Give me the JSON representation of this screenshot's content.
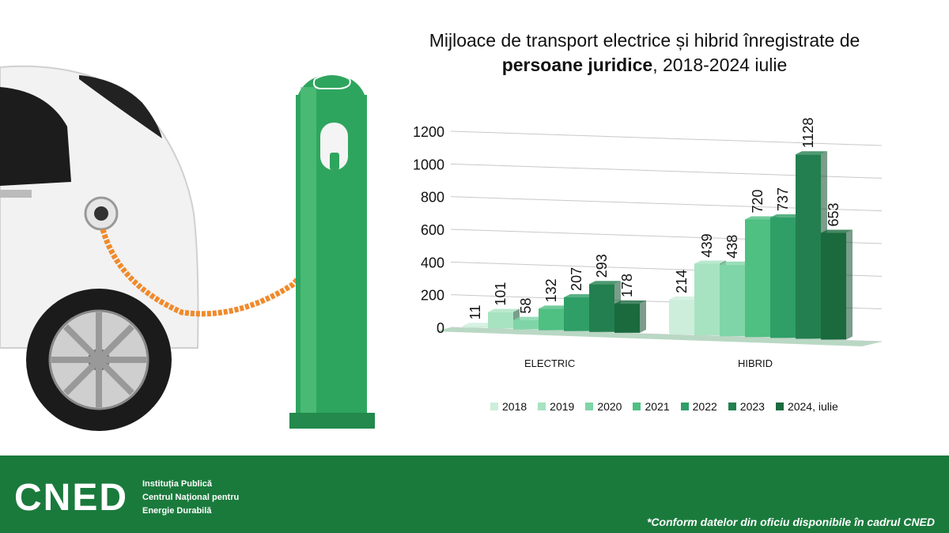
{
  "title_line1": "Mijloace de transport electrice și hibrid înregistrate de",
  "title_bold": "persoane juridice",
  "title_rest": ", 2018-2024 iulie",
  "footer": {
    "logo": "CNED",
    "org_line1": "Instituția Publică",
    "org_line2": "Centrul Național pentru",
    "org_line3": "Energie Durabilă",
    "note": "*Conform datelor din oficiu disponibile în cadrul CNED"
  },
  "colors": {
    "footer": "#1a7a3c",
    "series": [
      "#cdeedb",
      "#a8e3c1",
      "#7fd5a7",
      "#4fbf82",
      "#2f9e67",
      "#237f4f",
      "#1a6a3e"
    ]
  },
  "chart_data": {
    "type": "bar",
    "categories": [
      "ELECTRIC",
      "HIBRID"
    ],
    "ylim": [
      0,
      1200
    ],
    "yticks": [
      0,
      200,
      400,
      600,
      800,
      1000,
      1200
    ],
    "series": [
      {
        "name": "2018",
        "values": [
          11,
          214
        ]
      },
      {
        "name": "2019",
        "values": [
          101,
          439
        ]
      },
      {
        "name": "2020",
        "values": [
          58,
          438
        ]
      },
      {
        "name": "2021",
        "values": [
          132,
          720
        ]
      },
      {
        "name": "2022",
        "values": [
          207,
          737
        ]
      },
      {
        "name": "2023",
        "values": [
          293,
          1128
        ]
      },
      {
        "name": "2024, iulie",
        "values": [
          178,
          653
        ]
      }
    ],
    "legend_position": "bottom",
    "grid": true
  }
}
